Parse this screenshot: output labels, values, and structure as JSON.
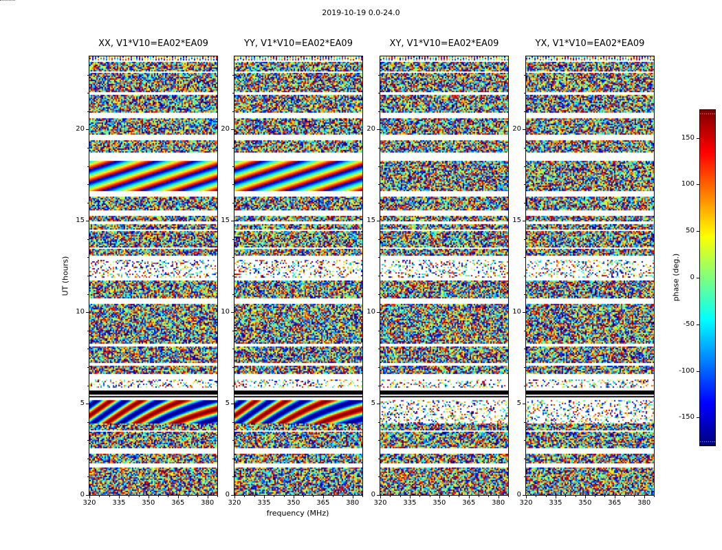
{
  "figure": {
    "title": "2019-10-19 0.0-24.0",
    "xlabel": "frequency (MHz)",
    "ylabel": "UT (hours)",
    "colorbar_label": "phase (deg.)"
  },
  "panels": [
    {
      "id": "XX",
      "title": "XX, V1*V10=EA02*EA09"
    },
    {
      "id": "YY",
      "title": "YY, V1*V10=EA02*EA09"
    },
    {
      "id": "XY",
      "title": "XY, V1*V10=EA02*EA09"
    },
    {
      "id": "YX",
      "title": "YX, V1*V10=EA02*EA09"
    }
  ],
  "axes": {
    "x_ticks": [
      "320",
      "335",
      "350",
      "365",
      "380"
    ],
    "y_ticks": [
      "0",
      "5",
      "10",
      "15",
      "20"
    ]
  },
  "colorbar": {
    "ticks": [
      "150",
      "100",
      "50",
      "0",
      "-50",
      "-100",
      "-150"
    ]
  },
  "chart_data": {
    "type": "heatmap",
    "title": "2019-10-19 0.0-24.0",
    "xlabel": "frequency (MHz)",
    "ylabel": "UT (hours)",
    "x_range_mhz": [
      320,
      385
    ],
    "x_ticks_mhz": [
      320,
      335,
      350,
      365,
      380
    ],
    "y_range_hours": [
      0,
      24
    ],
    "y_ticks_hours": [
      0,
      5,
      10,
      15,
      20
    ],
    "colorbar": {
      "label": "phase (deg.)",
      "range_deg": [
        -180,
        180
      ],
      "ticks_deg": [
        150,
        100,
        50,
        0,
        -50,
        -100,
        -150
      ],
      "colormap": "jet"
    },
    "panels": [
      "XX, V1*V10=EA02*EA09",
      "YY, V1*V10=EA02*EA09",
      "XY, V1*V10=EA02*EA09",
      "YX, V1*V10=EA02*EA09"
    ],
    "description": "Visibility phase versus frequency (320-385 MHz) and time (0-24 h UT) for baseline EA02*EA09 in four correlation products. Content is random-looking wrapped phase noise arranged in horizontal scan bands separated by white gaps; smooth phase-fringe bands appear in XX and YY near ~4-5 h and ~17-18 h; solid black flagged rows near ~5.5 h; structure is aligned across all four panels."
  }
}
